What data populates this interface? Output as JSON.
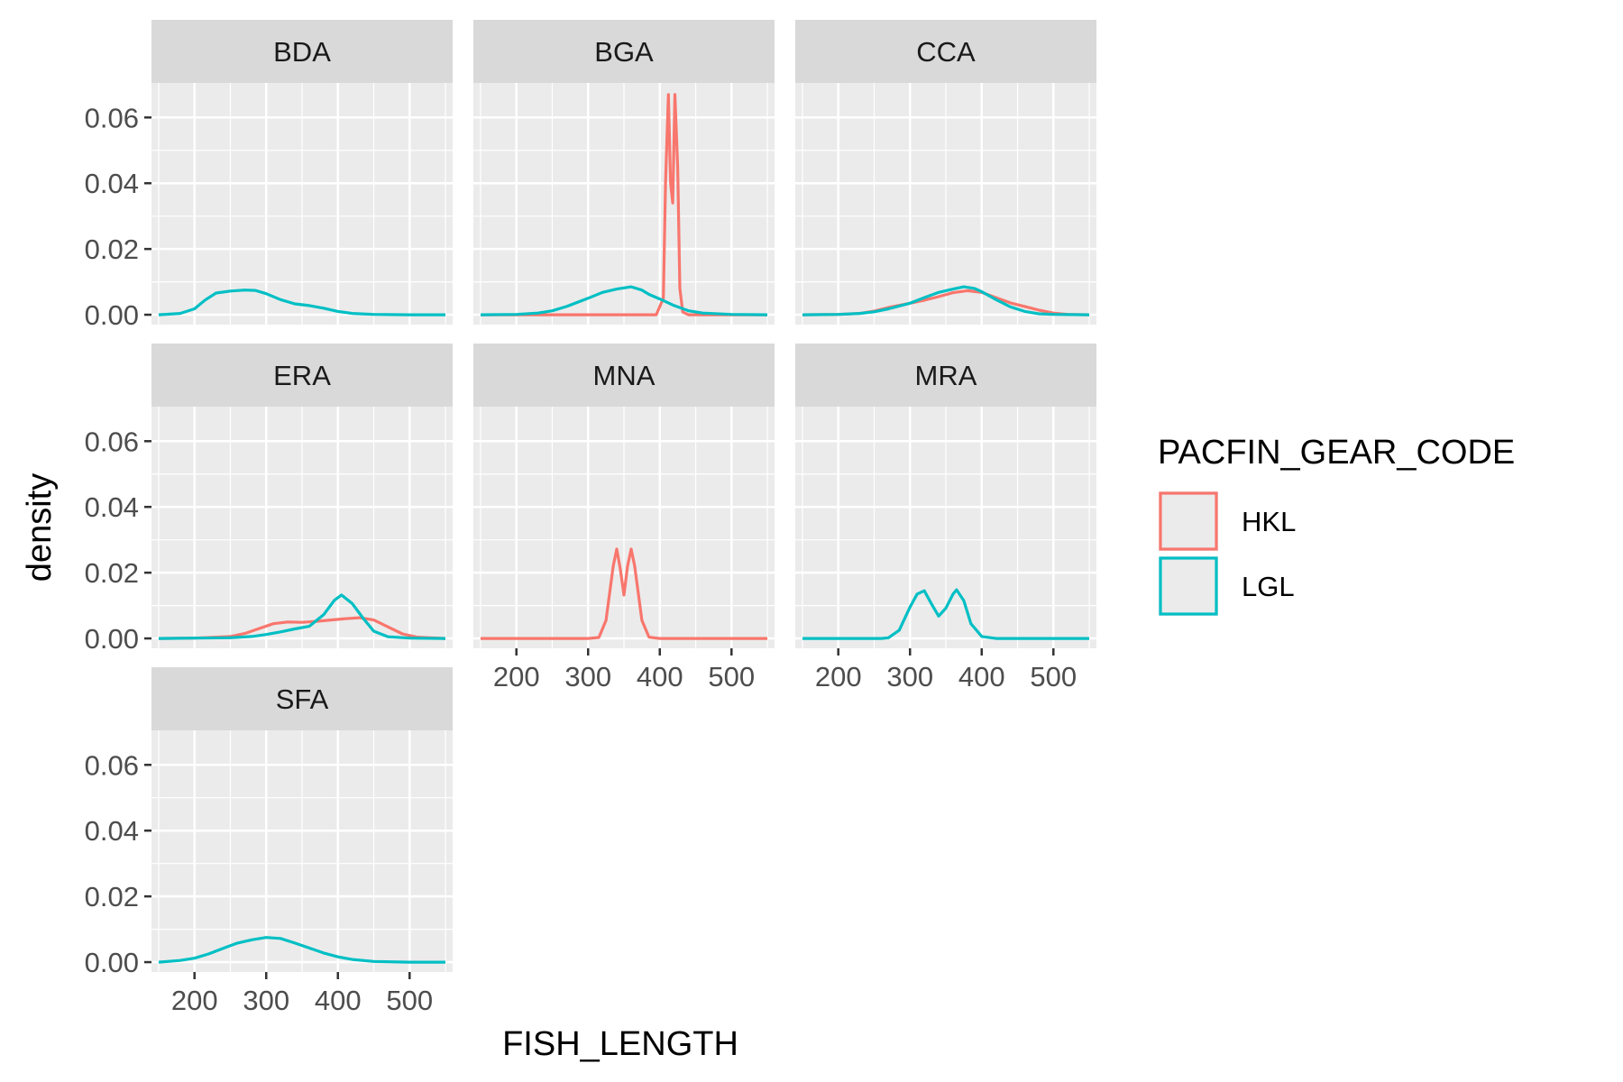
{
  "chart_data": {
    "type": "line",
    "xlabel": "FISH_LENGTH",
    "ylabel": "density",
    "xlim": [
      140,
      560
    ],
    "ylim": [
      -0.003,
      0.0705
    ],
    "x_ticks": [
      200,
      300,
      400,
      500
    ],
    "y_ticks": [
      0.0,
      0.02,
      0.04,
      0.06
    ],
    "x_tick_labels": [
      "200",
      "300",
      "400",
      "500"
    ],
    "y_tick_labels": [
      "0.00",
      "0.02",
      "0.04",
      "0.06"
    ],
    "grid": true,
    "legend": {
      "title": "PACFIN_GEAR_CODE",
      "placement": "right",
      "entries": [
        {
          "label": "HKL",
          "color": "#F8766D"
        },
        {
          "label": "LGL",
          "color": "#00BFC4"
        }
      ]
    },
    "colors": {
      "HKL": "#F8766D",
      "LGL": "#00BFC4",
      "panel": "#EBEBEB",
      "strip": "#D9D9D9"
    },
    "facets": [
      {
        "name": "BDA",
        "series": [
          {
            "name": "LGL",
            "x": [
              150,
              180,
              200,
              215,
              230,
              250,
              270,
              285,
              300,
              320,
              340,
              360,
              380,
              400,
              420,
              450,
              500,
              550
            ],
            "y": [
              0,
              0.0004,
              0.0018,
              0.0045,
              0.0066,
              0.0072,
              0.0075,
              0.0074,
              0.0064,
              0.0046,
              0.0033,
              0.0028,
              0.002,
              0.001,
              0.0004,
              0.0001,
              0,
              0
            ]
          }
        ]
      },
      {
        "name": "BGA",
        "series": [
          {
            "name": "HKL",
            "x": [
              150,
              250,
              300,
              350,
              395,
              405,
              408,
              412,
              415,
              418,
              421,
              425,
              428,
              432,
              440,
              500,
              550
            ],
            "y": [
              0,
              0,
              0,
              0,
              0,
              0.005,
              0.04,
              0.067,
              0.04,
              0.034,
              0.067,
              0.045,
              0.008,
              0.0008,
              0,
              0,
              0
            ]
          },
          {
            "name": "LGL",
            "x": [
              150,
              200,
              230,
              250,
              270,
              300,
              320,
              340,
              360,
              375,
              385,
              400,
              420,
              440,
              460,
              500,
              550
            ],
            "y": [
              0,
              0.0001,
              0.0005,
              0.0012,
              0.0025,
              0.005,
              0.0068,
              0.0078,
              0.0085,
              0.0075,
              0.0062,
              0.0048,
              0.0028,
              0.0012,
              0.0005,
              0.0001,
              0
            ]
          }
        ]
      },
      {
        "name": "CCA",
        "series": [
          {
            "name": "HKL",
            "x": [
              150,
              200,
              230,
              250,
              270,
              300,
              320,
              340,
              360,
              380,
              400,
              420,
              440,
              460,
              480,
              500,
              520,
              550
            ],
            "y": [
              0,
              0.0001,
              0.0004,
              0.0011,
              0.0022,
              0.0035,
              0.0044,
              0.0055,
              0.0067,
              0.0073,
              0.0068,
              0.0052,
              0.0036,
              0.0025,
              0.0014,
              0.0005,
              0.0001,
              0
            ]
          },
          {
            "name": "LGL",
            "x": [
              150,
              200,
              230,
              250,
              270,
              300,
              320,
              340,
              360,
              375,
              390,
              400,
              420,
              440,
              460,
              480,
              500,
              550
            ],
            "y": [
              0,
              0.0001,
              0.0004,
              0.0009,
              0.0018,
              0.0035,
              0.0052,
              0.0068,
              0.0078,
              0.0085,
              0.008,
              0.007,
              0.0046,
              0.0024,
              0.001,
              0.0003,
              0.0001,
              0
            ]
          }
        ]
      },
      {
        "name": "ERA",
        "series": [
          {
            "name": "HKL",
            "x": [
              150,
              200,
              250,
              270,
              290,
              310,
              330,
              350,
              370,
              390,
              410,
              430,
              450,
              470,
              490,
              510,
              550
            ],
            "y": [
              0,
              0.0001,
              0.0006,
              0.0015,
              0.003,
              0.0045,
              0.005,
              0.0049,
              0.0052,
              0.0056,
              0.006,
              0.0063,
              0.0056,
              0.0035,
              0.0014,
              0.0004,
              0
            ]
          },
          {
            "name": "LGL",
            "x": [
              150,
              200,
              250,
              280,
              300,
              320,
              340,
              360,
              380,
              395,
              405,
              420,
              435,
              450,
              470,
              500,
              550
            ],
            "y": [
              0,
              0.0001,
              0.0002,
              0.0006,
              0.0012,
              0.002,
              0.0029,
              0.0037,
              0.0072,
              0.0116,
              0.0132,
              0.0106,
              0.0062,
              0.0022,
              0.0005,
              0.0001,
              0
            ]
          }
        ]
      },
      {
        "name": "MNA",
        "series": [
          {
            "name": "HKL",
            "x": [
              150,
              300,
              315,
              325,
              335,
              340,
              345,
              350,
              355,
              360,
              365,
              375,
              385,
              400,
              550
            ],
            "y": [
              0,
              0,
              0.0003,
              0.0055,
              0.022,
              0.0272,
              0.021,
              0.0132,
              0.022,
              0.0272,
              0.022,
              0.0055,
              0.0004,
              0,
              0
            ]
          }
        ]
      },
      {
        "name": "MRA",
        "series": [
          {
            "name": "LGL",
            "x": [
              150,
              260,
              270,
              285,
              300,
              310,
              320,
              330,
              340,
              350,
              360,
              365,
              375,
              385,
              400,
              420,
              550
            ],
            "y": [
              0,
              0,
              0.0002,
              0.0025,
              0.0095,
              0.0135,
              0.0145,
              0.0105,
              0.0068,
              0.0092,
              0.0135,
              0.0148,
              0.0115,
              0.0045,
              0.0006,
              0,
              0
            ]
          }
        ]
      },
      {
        "name": "SFA",
        "series": [
          {
            "name": "LGL",
            "x": [
              150,
              180,
              200,
              220,
              240,
              260,
              280,
              300,
              320,
              340,
              360,
              380,
              400,
              420,
              450,
              500,
              550
            ],
            "y": [
              0,
              0.0005,
              0.0012,
              0.0025,
              0.0042,
              0.0058,
              0.0068,
              0.0075,
              0.0072,
              0.0058,
              0.0043,
              0.0028,
              0.0016,
              0.0008,
              0.0002,
              0,
              0
            ]
          }
        ]
      }
    ]
  }
}
